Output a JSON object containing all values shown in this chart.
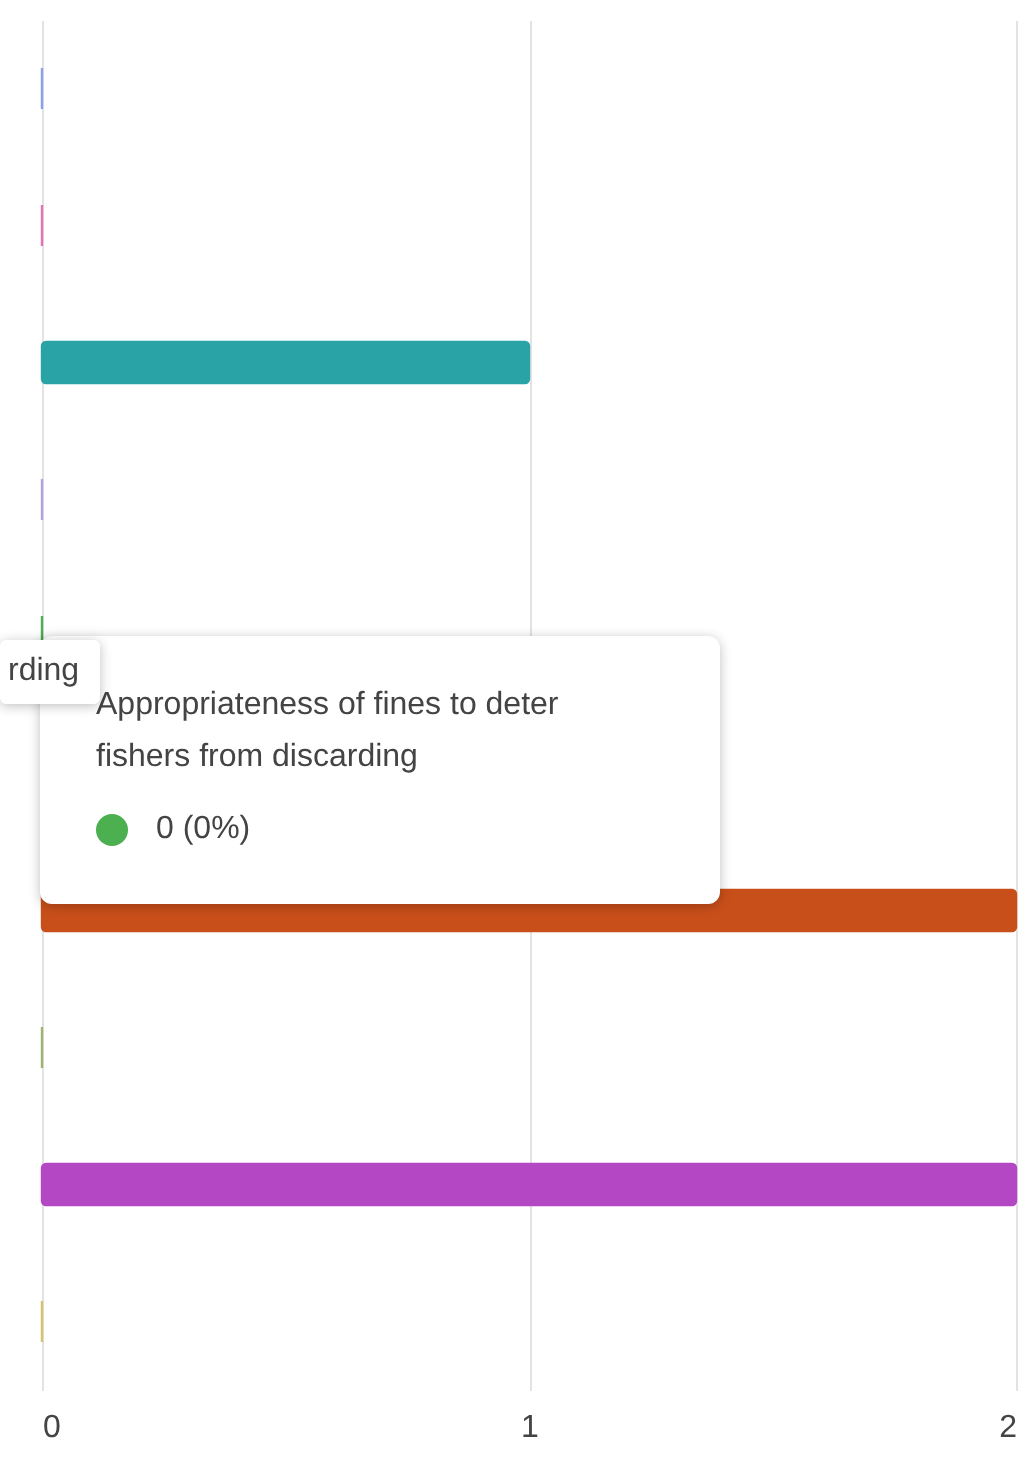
{
  "chart_data": {
    "type": "bar",
    "orientation": "horizontal",
    "categories": [
      null,
      null,
      null,
      null,
      null,
      null,
      null,
      null,
      null,
      null
    ],
    "values": [
      0,
      0,
      1,
      0,
      0,
      null,
      2,
      0,
      2,
      0
    ],
    "colors": [
      "#8f9ff0",
      "#e870b4",
      "#2aa3a6",
      "#b4a2e6",
      "#4caf50",
      "#cccccc",
      "#c94f1a",
      "#9db46e",
      "#b347c4",
      "#d9c06a"
    ],
    "xlim": [
      0,
      2
    ],
    "xticks": [
      0,
      1,
      2
    ],
    "grid": "x",
    "tick_labels": "x",
    "annotations": [
      "rding",
      "Appropriateness of fines to deter fishers from discarding",
      "0 (0%)"
    ]
  }
}
